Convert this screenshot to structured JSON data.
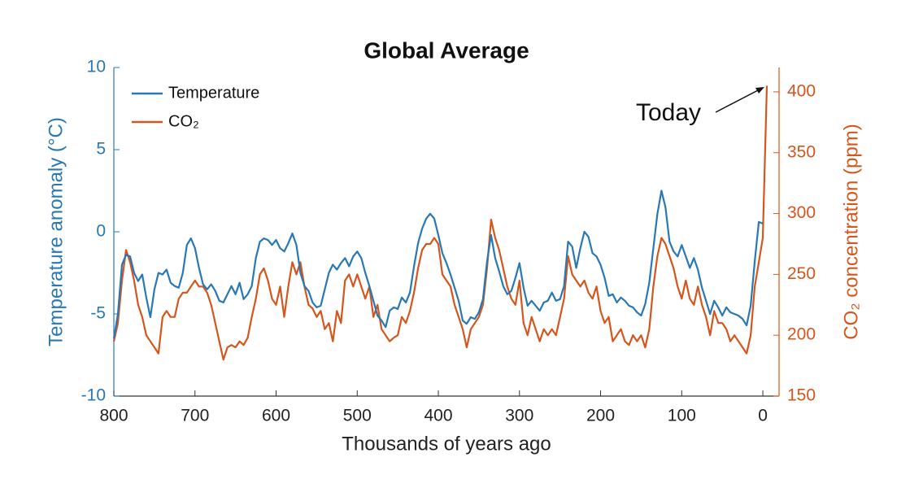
{
  "chart_data": {
    "type": "line",
    "title": "Global Average",
    "x_label": "Thousands of years ago",
    "y_label": "Temperature anomaly (°C)",
    "y2_label": "CO₂ concentration (ppm)",
    "annotation": "Today",
    "legend": "upper left",
    "xlim": [
      800,
      -20
    ],
    "xticks": [
      800,
      700,
      600,
      500,
      400,
      300,
      200,
      100,
      0
    ],
    "ylim": [
      -10,
      10
    ],
    "yticks": [
      -10,
      -5,
      0,
      5,
      10
    ],
    "y2lim": [
      150,
      420
    ],
    "y2ticks": [
      150,
      200,
      250,
      300,
      350,
      400
    ],
    "x": [
      800,
      795,
      790,
      785,
      780,
      775,
      770,
      765,
      760,
      755,
      750,
      745,
      740,
      735,
      730,
      725,
      720,
      715,
      710,
      705,
      700,
      695,
      690,
      685,
      680,
      675,
      670,
      665,
      660,
      655,
      650,
      645,
      640,
      635,
      630,
      625,
      620,
      615,
      610,
      605,
      600,
      595,
      590,
      585,
      580,
      575,
      570,
      565,
      560,
      555,
      550,
      545,
      540,
      535,
      530,
      525,
      520,
      515,
      510,
      505,
      500,
      495,
      490,
      485,
      480,
      475,
      470,
      465,
      460,
      455,
      450,
      445,
      440,
      435,
      430,
      425,
      420,
      415,
      410,
      405,
      400,
      395,
      390,
      385,
      380,
      375,
      370,
      365,
      360,
      355,
      350,
      345,
      340,
      335,
      330,
      325,
      320,
      315,
      310,
      305,
      300,
      295,
      290,
      285,
      280,
      275,
      270,
      265,
      260,
      255,
      250,
      245,
      240,
      235,
      230,
      225,
      220,
      215,
      210,
      205,
      200,
      195,
      190,
      185,
      180,
      175,
      170,
      165,
      160,
      155,
      150,
      145,
      140,
      135,
      130,
      125,
      120,
      115,
      110,
      105,
      100,
      95,
      90,
      85,
      80,
      75,
      70,
      65,
      60,
      55,
      50,
      45,
      40,
      35,
      30,
      25,
      20,
      15,
      10,
      5,
      0,
      -5
    ],
    "series": [
      {
        "name": "Temperature",
        "color": "#2878b5",
        "values": [
          -6.5,
          -5,
          -2,
          -1.4,
          -1.5,
          -2.5,
          -3,
          -2.6,
          -4,
          -5.2,
          -3.5,
          -2.5,
          -2.6,
          -2.3,
          -3.1,
          -3.3,
          -3.4,
          -2.5,
          -0.8,
          -0.4,
          -1,
          -2.2,
          -3.2,
          -3.5,
          -3.2,
          -3.6,
          -4.2,
          -4.3,
          -3.8,
          -3.3,
          -3.8,
          -3.1,
          -4.1,
          -3.8,
          -3.3,
          -1.6,
          -0.6,
          -0.4,
          -0.5,
          -0.8,
          -0.5,
          -1,
          -1.2,
          -0.7,
          -0.1,
          -0.8,
          -2.5,
          -3.3,
          -3.6,
          -4.3,
          -4.6,
          -4.5,
          -3.5,
          -2.5,
          -2,
          -2.3,
          -1.9,
          -1.6,
          -2.1,
          -1.5,
          -1.2,
          -1.6,
          -2.5,
          -3.3,
          -4.2,
          -5.1,
          -5.4,
          -5.8,
          -4.8,
          -4.6,
          -4.7,
          -4,
          -4.3,
          -3.7,
          -2.1,
          -0.7,
          0.2,
          0.8,
          1.1,
          0.8,
          -0.2,
          -1.3,
          -1.9,
          -2.6,
          -3.4,
          -4.2,
          -5.4,
          -5.6,
          -5.2,
          -5.3,
          -4.9,
          -4.1,
          -1.8,
          -0.2,
          -1.6,
          -2.4,
          -3.3,
          -3.8,
          -3.6,
          -2.8,
          -1.9,
          -3.4,
          -4.5,
          -4.2,
          -4.5,
          -4.8,
          -4.3,
          -4.2,
          -3.7,
          -4.2,
          -4.1,
          -3.3,
          -0.6,
          -0.9,
          -2.2,
          -1,
          0,
          -0.3,
          -1.3,
          -1.5,
          -2,
          -2.8,
          -3.9,
          -3.8,
          -4.3,
          -4,
          -4.2,
          -4.5,
          -4.6,
          -4.9,
          -5.1,
          -4.4,
          -3.1,
          -1,
          1.1,
          2.5,
          1.5,
          -0.6,
          -1.2,
          -1.5,
          -0.8,
          -1.5,
          -2.2,
          -1.6,
          -2.3,
          -3.4,
          -4.2,
          -5,
          -4.2,
          -4.6,
          -5.1,
          -4.6,
          -4.9,
          -5,
          -5.1,
          -5.3,
          -5.7,
          -4.5,
          -1.8,
          0.6,
          0.5,
          null
        ]
      },
      {
        "name": "CO₂",
        "color": "#d4561c",
        "axis": "y2",
        "values": [
          195,
          210,
          245,
          270,
          260,
          245,
          225,
          215,
          200,
          195,
          190,
          185,
          215,
          220,
          215,
          215,
          230,
          235,
          235,
          240,
          245,
          240,
          240,
          235,
          225,
          210,
          195,
          180,
          190,
          192,
          190,
          195,
          192,
          198,
          215,
          230,
          250,
          255,
          245,
          230,
          225,
          240,
          215,
          240,
          260,
          250,
          260,
          240,
          225,
          222,
          215,
          220,
          205,
          210,
          195,
          220,
          210,
          245,
          250,
          240,
          250,
          240,
          230,
          240,
          215,
          225,
          205,
          200,
          195,
          198,
          200,
          215,
          210,
          220,
          235,
          255,
          270,
          275,
          275,
          280,
          275,
          250,
          245,
          240,
          225,
          215,
          205,
          190,
          205,
          210,
          215,
          225,
          255,
          295,
          280,
          270,
          255,
          240,
          230,
          225,
          245,
          210,
          200,
          215,
          205,
          195,
          205,
          200,
          205,
          200,
          215,
          230,
          265,
          250,
          245,
          240,
          245,
          235,
          230,
          240,
          220,
          210,
          215,
          195,
          200,
          205,
          195,
          192,
          200,
          195,
          200,
          190,
          205,
          240,
          265,
          280,
          275,
          265,
          255,
          240,
          230,
          245,
          230,
          225,
          240,
          225,
          215,
          200,
          220,
          210,
          210,
          205,
          195,
          200,
          195,
          190,
          185,
          200,
          240,
          260,
          280,
          405
        ]
      }
    ]
  }
}
